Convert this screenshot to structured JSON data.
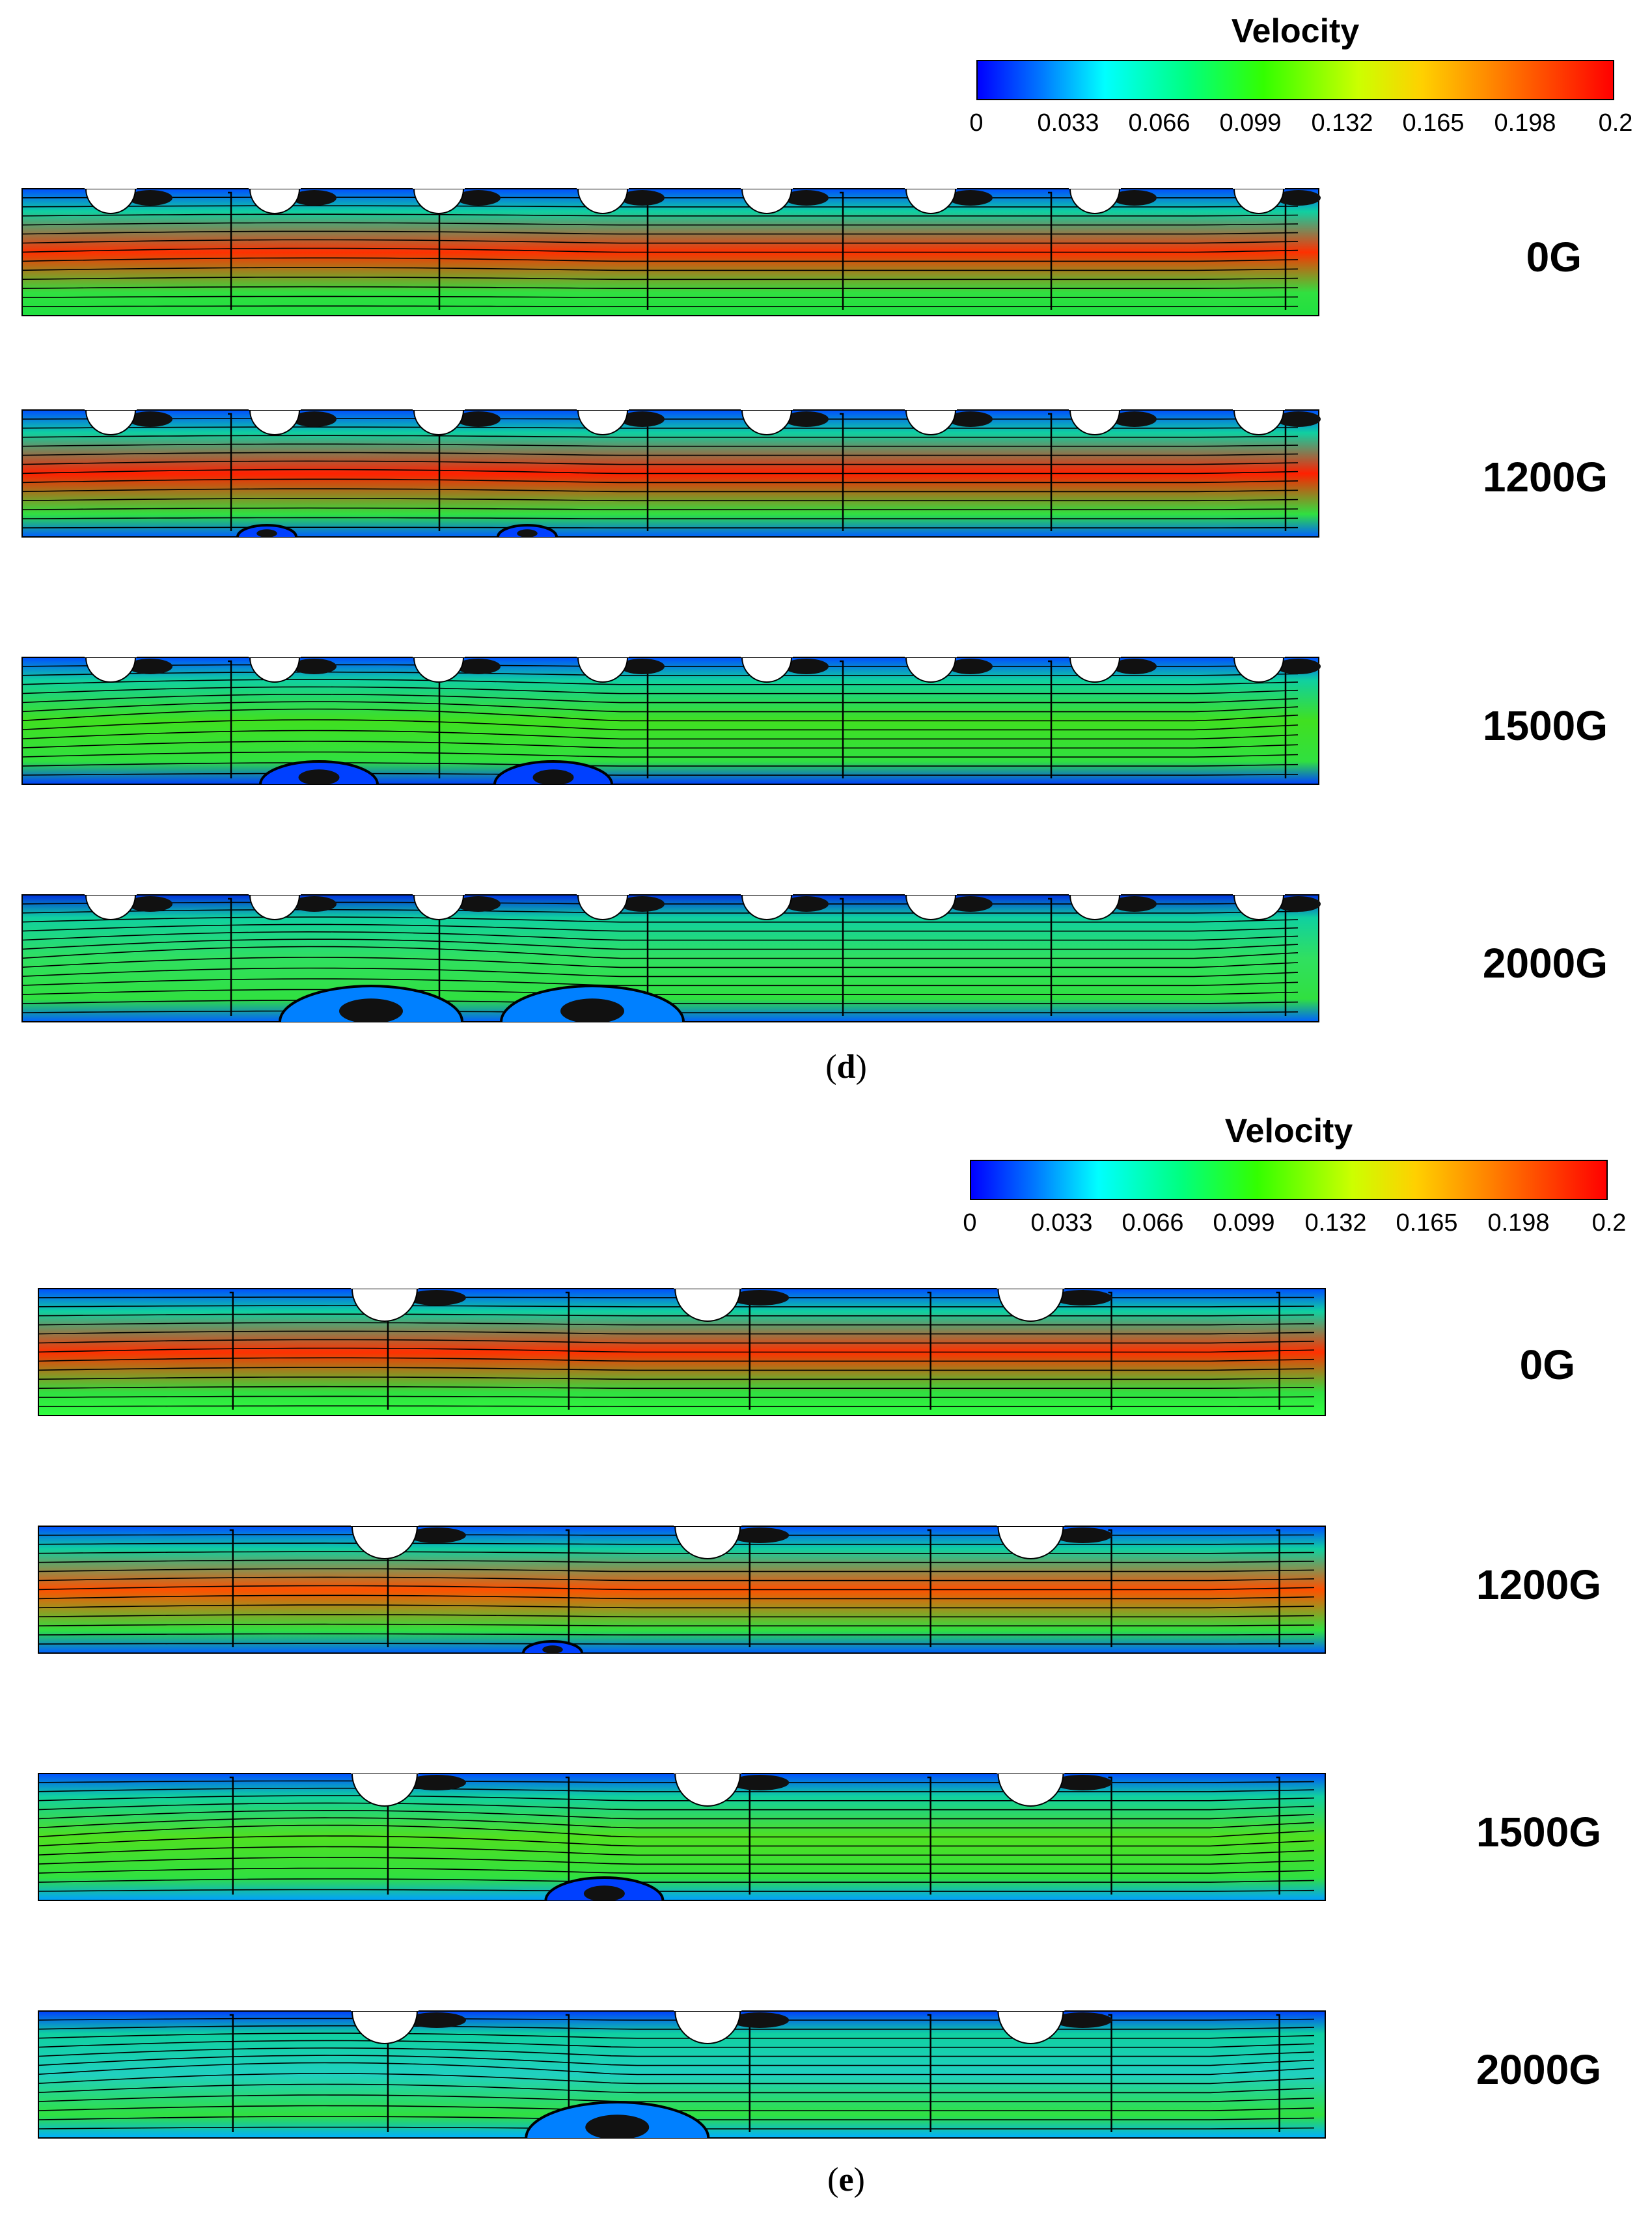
{
  "figures": [
    {
      "id": "d",
      "colorbar": {
        "title": "Velocity",
        "ticks": [
          "0",
          "0.033",
          "0.066",
          "0.099",
          "0.132",
          "0.165",
          "0.198",
          "0.2"
        ],
        "range": [
          0,
          0.2
        ]
      },
      "caption_letter": "d",
      "panels": [
        {
          "label": "0G"
        },
        {
          "label": "1200G"
        },
        {
          "label": "1500G"
        },
        {
          "label": "2000G"
        }
      ],
      "bump_count": 8
    },
    {
      "id": "e",
      "colorbar": {
        "title": "Velocity",
        "ticks": [
          "0",
          "0.033",
          "0.066",
          "0.099",
          "0.132",
          "0.165",
          "0.198",
          "0.2"
        ],
        "range": [
          0,
          0.2
        ]
      },
      "caption_letter": "e",
      "panels": [
        {
          "label": "0G"
        },
        {
          "label": "1200G"
        },
        {
          "label": "1500G"
        },
        {
          "label": "2000G"
        }
      ],
      "bump_count": 3
    }
  ],
  "colors": {
    "low": "#0000ff",
    "mid": "#33ff00",
    "high": "#ff0000",
    "vortex": "#111111"
  }
}
